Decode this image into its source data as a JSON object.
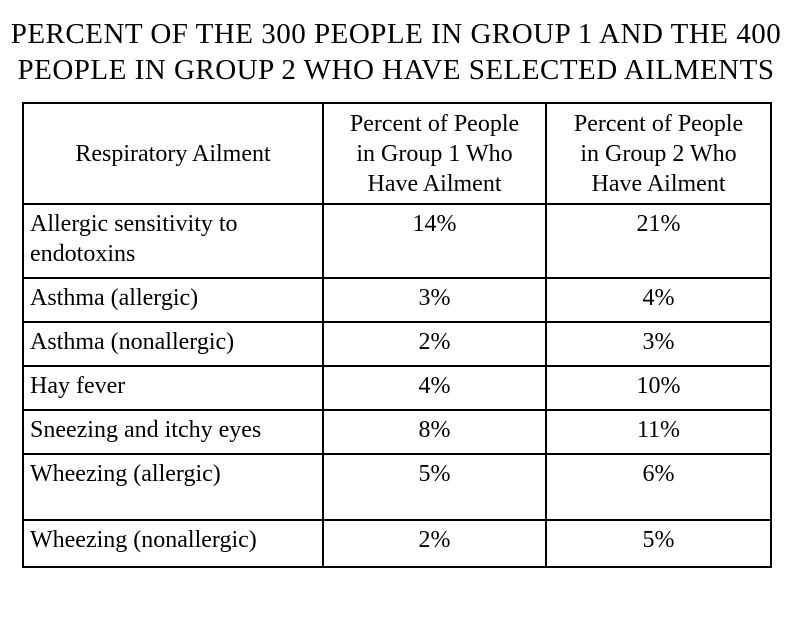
{
  "title": {
    "line1": "PERCENT OF THE 300 PEOPLE IN GROUP 1 AND THE 400",
    "line2": "PEOPLE IN GROUP 2 WHO HAVE SELECTED AILMENTS"
  },
  "table": {
    "headers": {
      "ailment": "Respiratory Ailment",
      "group1": "Percent of People\nin Group 1 Who\nHave Ailment",
      "group2": "Percent of People\nin Group 2 Who\nHave Ailment"
    },
    "rows": [
      {
        "ailment": "Allergic sensitivity to\nendotoxins",
        "group1": "14%",
        "group2": "21%"
      },
      {
        "ailment": "Asthma (allergic)",
        "group1": "3%",
        "group2": "4%"
      },
      {
        "ailment": "Asthma (nonallergic)",
        "group1": "2%",
        "group2": "3%"
      },
      {
        "ailment": "Hay fever",
        "group1": "4%",
        "group2": "10%"
      },
      {
        "ailment": "Sneezing and itchy eyes",
        "group1": "8%",
        "group2": "11%"
      },
      {
        "ailment": "Wheezing (allergic)",
        "group1": "5%",
        "group2": "6%"
      },
      {
        "ailment": "Wheezing (nonallergic)",
        "group1": "2%",
        "group2": "5%"
      }
    ]
  },
  "chart_data": {
    "type": "table",
    "title": "PERCENT OF THE 300 PEOPLE IN GROUP 1 AND THE 400 PEOPLE IN GROUP 2 WHO HAVE SELECTED AILMENTS",
    "row_label_header": "Respiratory Ailment",
    "categories": [
      "Allergic sensitivity to endotoxins",
      "Asthma (allergic)",
      "Asthma (nonallergic)",
      "Hay fever",
      "Sneezing and itchy eyes",
      "Wheezing (allergic)",
      "Wheezing (nonallergic)"
    ],
    "series": [
      {
        "name": "Percent of People in Group 1 Who Have Ailment",
        "group_size": 300,
        "values": [
          14,
          3,
          2,
          4,
          8,
          5,
          2
        ]
      },
      {
        "name": "Percent of People in Group 2 Who Have Ailment",
        "group_size": 400,
        "values": [
          21,
          4,
          3,
          10,
          11,
          6,
          5
        ]
      }
    ],
    "value_unit": "%"
  },
  "colors": {
    "background": "#ffffff",
    "border": "#000000",
    "text": "#000000"
  }
}
